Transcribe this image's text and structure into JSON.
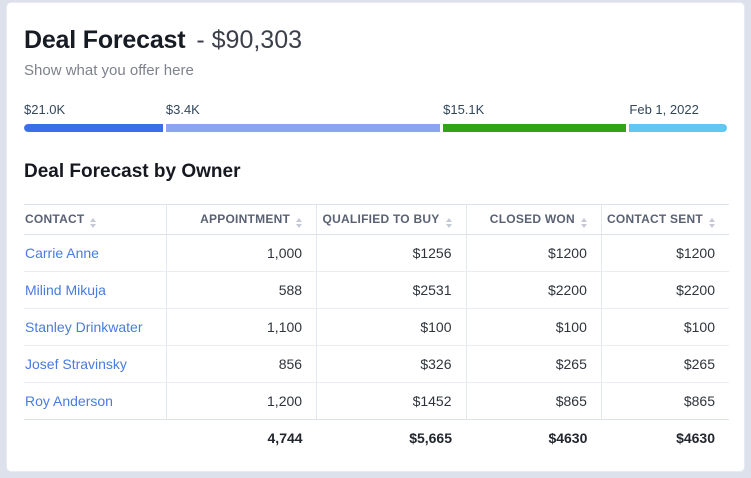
{
  "header": {
    "title": "Deal Forecast",
    "title_value": "- $90,303",
    "subtitle": "Show what you offer here"
  },
  "funnel": {
    "segments": [
      {
        "label": "$21.0K",
        "color": "#3b6fe8",
        "width_pct": 19.7
      },
      {
        "label": "$3.4K",
        "color": "#8ba6f0",
        "width_pct": 38.9
      },
      {
        "label": "$15.1K",
        "color": "#31a415",
        "width_pct": 26.0
      },
      {
        "label": "Feb 1, 2022",
        "color": "#62c6f2",
        "width_pct": 13.9
      }
    ]
  },
  "section": {
    "title": "Deal Forecast by Owner"
  },
  "table": {
    "columns": [
      "Contact",
      "Appointment",
      "Qualified to Buy",
      "Closed Won",
      "Contact Sent"
    ],
    "rows": [
      {
        "cells": [
          "Carrie Anne",
          "1,000",
          "$1256",
          "$1200",
          "$1200"
        ]
      },
      {
        "cells": [
          "Milind Mikuja",
          "588",
          "$2531",
          "$2200",
          "$2200"
        ]
      },
      {
        "cells": [
          "Stanley Drinkwater",
          "1,100",
          "$100",
          "$100",
          "$100"
        ]
      },
      {
        "cells": [
          "Josef Stravinsky",
          "856",
          "$326",
          "$265",
          "$265"
        ]
      },
      {
        "cells": [
          "Roy Anderson",
          "1,200",
          "$1452",
          "$865",
          "$865"
        ]
      }
    ],
    "totals": [
      "",
      "4,744",
      "$5,665",
      "$4630",
      "$4630"
    ]
  }
}
